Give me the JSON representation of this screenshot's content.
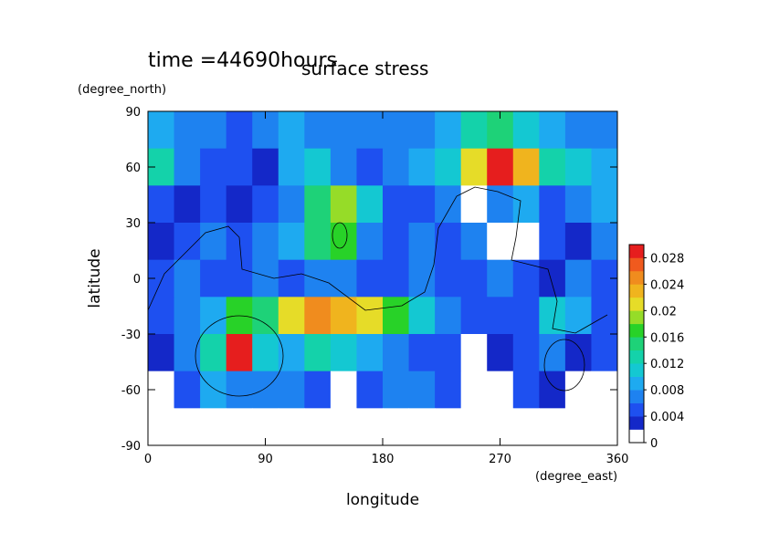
{
  "chart_data": {
    "type": "contourf",
    "time_label": "time =44690hours",
    "title": "surface stress",
    "x_label": "longitude",
    "x_units": "(degree_east)",
    "y_label": "latitude",
    "y_units": "(degree_north)",
    "xlim": [
      0,
      360
    ],
    "xticks": [
      0,
      90,
      180,
      270,
      360
    ],
    "ylim": [
      -90,
      90
    ],
    "yticks": [
      -90,
      -60,
      -30,
      0,
      30,
      60,
      90
    ],
    "x": [
      10,
      30,
      50,
      70,
      90,
      110,
      130,
      150,
      170,
      190,
      210,
      230,
      250,
      270,
      290,
      310,
      330,
      350
    ],
    "y": [
      80,
      60,
      40,
      20,
      0,
      -20,
      -40,
      -60,
      -80
    ],
    "z": [
      [
        0.008,
        0.006,
        0.006,
        0.004,
        0.006,
        0.008,
        0.006,
        0.006,
        0.006,
        0.006,
        0.006,
        0.008,
        0.012,
        0.014,
        0.01,
        0.008,
        0.006,
        0.006
      ],
      [
        0.012,
        0.006,
        0.004,
        0.004,
        0.002,
        0.008,
        0.01,
        0.006,
        0.004,
        0.006,
        0.008,
        0.01,
        0.02,
        0.028,
        0.022,
        0.012,
        0.01,
        0.008
      ],
      [
        0.004,
        0.002,
        0.004,
        0.002,
        0.004,
        0.006,
        0.014,
        0.018,
        0.01,
        0.004,
        0.004,
        0.006,
        0,
        0.006,
        0.008,
        0.004,
        0.006,
        0.008
      ],
      [
        0.002,
        0.004,
        0.006,
        0.004,
        0.006,
        0.008,
        0.014,
        0.016,
        0.006,
        0.004,
        0.006,
        0.004,
        0.006,
        0,
        0,
        0.004,
        0.002,
        0.006
      ],
      [
        0.004,
        0.006,
        0.004,
        0.004,
        0.006,
        0.004,
        0.006,
        0.006,
        0.004,
        0.004,
        0.006,
        0.004,
        0.004,
        0.006,
        0.004,
        0.002,
        0.006,
        0.004
      ],
      [
        0.004,
        0.006,
        0.008,
        0.016,
        0.014,
        0.02,
        0.024,
        0.022,
        0.02,
        0.016,
        0.01,
        0.006,
        0.004,
        0.004,
        0.004,
        0.01,
        0.008,
        0.004
      ],
      [
        0.002,
        0.006,
        0.012,
        0.03,
        0.01,
        0.008,
        0.012,
        0.01,
        0.008,
        0.006,
        0.004,
        0.004,
        0,
        0.002,
        0.004,
        0.006,
        0.002,
        0.004
      ],
      [
        0,
        0.004,
        0.008,
        0.006,
        0.006,
        0.006,
        0.004,
        0,
        0.004,
        0.006,
        0.006,
        0.004,
        0,
        0,
        0.004,
        0.002,
        0,
        0
      ],
      [
        0,
        0,
        0,
        0,
        0,
        0,
        0,
        0,
        0,
        0,
        0,
        0,
        0,
        0,
        0,
        0,
        0,
        0
      ]
    ],
    "levels": [
      0,
      0.002,
      0.004,
      0.006,
      0.008,
      0.01,
      0.012,
      0.014,
      0.016,
      0.018,
      0.02,
      0.022,
      0.024,
      0.026,
      0.028,
      0.03
    ],
    "colors": [
      "#ffffff",
      "#1428c8",
      "#1e50f0",
      "#1e82f0",
      "#1eaaf0",
      "#14c8d2",
      "#14d2aa",
      "#1ed278",
      "#28d228",
      "#96dc28",
      "#e6dc28",
      "#f0b41e",
      "#f08c1e",
      "#f05a1e",
      "#e61e1e"
    ],
    "colorbar_ticks": [
      0,
      0.004,
      0.008,
      0.012,
      0.016,
      0.02,
      0.024,
      0.028
    ]
  }
}
